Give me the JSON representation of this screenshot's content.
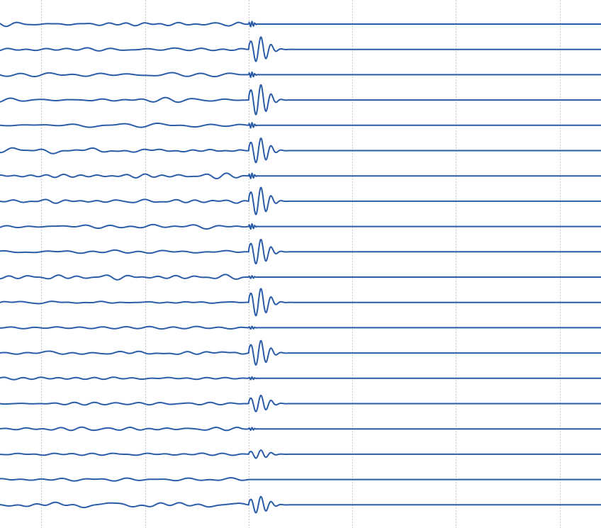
{
  "chart_data": {
    "type": "line",
    "title": "",
    "xlabel": "",
    "ylabel": "",
    "grid": true,
    "legend": "none",
    "line_color": "#2b5ca8",
    "grid_color": "#c8c8c8",
    "trace_count": 20,
    "vertical_gridline_x": [
      0.4,
      1.4,
      2.4,
      3.4,
      4.4,
      5.4
    ],
    "event_onset_x": 2.4,
    "noise_end_x": 2.4,
    "series": [
      {
        "event_window": [
          2.4,
          2.55
        ],
        "peak_amplitude": 0.1
      },
      {
        "event_window": [
          2.4,
          2.95
        ],
        "peak_amplitude": 0.45
      },
      {
        "event_window": [
          2.4,
          2.55
        ],
        "peak_amplitude": 0.1
      },
      {
        "event_window": [
          2.4,
          2.95
        ],
        "peak_amplitude": 0.55
      },
      {
        "event_window": [
          2.4,
          2.55
        ],
        "peak_amplitude": 0.1
      },
      {
        "event_window": [
          2.4,
          2.95
        ],
        "peak_amplitude": 0.45
      },
      {
        "event_window": [
          2.4,
          2.55
        ],
        "peak_amplitude": 0.1
      },
      {
        "event_window": [
          2.4,
          2.95
        ],
        "peak_amplitude": 0.5
      },
      {
        "event_window": [
          2.4,
          2.55
        ],
        "peak_amplitude": 0.1
      },
      {
        "event_window": [
          2.4,
          2.95
        ],
        "peak_amplitude": 0.45
      },
      {
        "event_window": [
          2.4,
          2.55
        ],
        "peak_amplitude": 0.05
      },
      {
        "event_window": [
          2.4,
          2.95
        ],
        "peak_amplitude": 0.5
      },
      {
        "event_window": [
          2.4,
          2.55
        ],
        "peak_amplitude": 0.05
      },
      {
        "event_window": [
          2.4,
          2.95
        ],
        "peak_amplitude": 0.45
      },
      {
        "event_window": [
          2.4,
          2.55
        ],
        "peak_amplitude": 0.05
      },
      {
        "event_window": [
          2.4,
          2.95
        ],
        "peak_amplitude": 0.3
      },
      {
        "event_window": [
          2.4,
          2.55
        ],
        "peak_amplitude": 0.05
      },
      {
        "event_window": [
          2.4,
          2.95
        ],
        "peak_amplitude": 0.15
      },
      {
        "event_window": [
          2.4,
          2.55
        ],
        "peak_amplitude": 0.0
      },
      {
        "event_window": [
          2.4,
          2.95
        ],
        "peak_amplitude": 0.3
      }
    ],
    "x_range": [
      0,
      5.8
    ]
  }
}
